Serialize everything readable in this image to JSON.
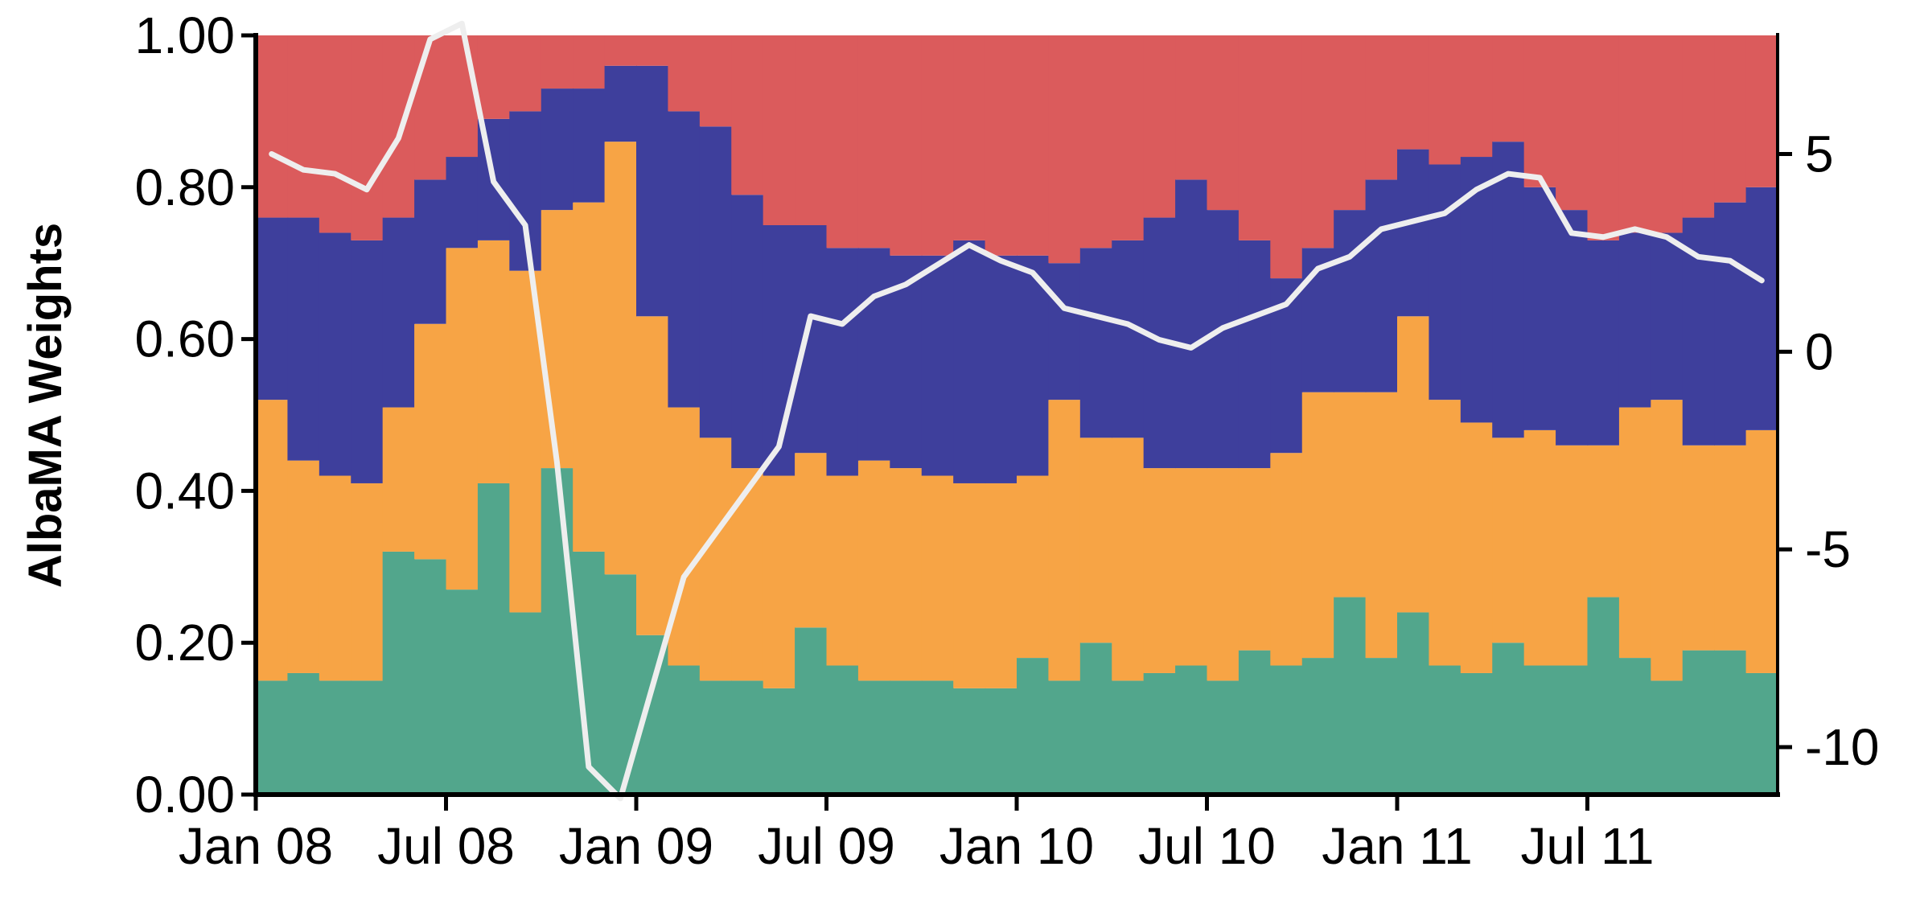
{
  "chart_data": {
    "type": "area",
    "ylabel": "AlbaMA Weights",
    "ylim": [
      0,
      1
    ],
    "y_ticks": [
      "0.00",
      "0.20",
      "0.40",
      "0.60",
      "0.80",
      "1.00"
    ],
    "y2lim": [
      -11.2,
      8
    ],
    "y2_ticks": [
      "-10",
      "-5",
      "0",
      "5"
    ],
    "x_ticks": [
      "Jan 08",
      "Jul 08",
      "Jan 09",
      "Jul 09",
      "Jan 10",
      "Jul 10",
      "Jan 11",
      "Jul 11"
    ],
    "x": [
      "2008-01",
      "2008-02",
      "2008-03",
      "2008-04",
      "2008-05",
      "2008-06",
      "2008-07",
      "2008-08",
      "2008-09",
      "2008-10",
      "2008-11",
      "2008-12",
      "2009-01",
      "2009-02",
      "2009-03",
      "2009-04",
      "2009-05",
      "2009-06",
      "2009-07",
      "2009-08",
      "2009-09",
      "2009-10",
      "2009-11",
      "2009-12",
      "2010-01",
      "2010-02",
      "2010-03",
      "2010-04",
      "2010-05",
      "2010-06",
      "2010-07",
      "2010-08",
      "2010-09",
      "2010-10",
      "2010-11",
      "2010-12",
      "2011-01",
      "2011-02",
      "2011-03",
      "2011-04",
      "2011-05",
      "2011-06",
      "2011-07",
      "2011-08",
      "2011-09",
      "2011-10",
      "2011-11",
      "2011-12"
    ],
    "colors": {
      "green": "#52a68c",
      "orange": "#f7a445",
      "blue": "#3e3f9c",
      "red": "#db5b5c",
      "line": "#eeeeee"
    },
    "series": [
      {
        "values": [
          0.15,
          0.16,
          0.15,
          0.15,
          0.32,
          0.31,
          0.27,
          0.41,
          0.24,
          0.43,
          0.32,
          0.29,
          0.21,
          0.17,
          0.15,
          0.15,
          0.14,
          0.22,
          0.17,
          0.15,
          0.15,
          0.15,
          0.14,
          0.14,
          0.18,
          0.15,
          0.2,
          0.15,
          0.16,
          0.17,
          0.15,
          0.19,
          0.17,
          0.18,
          0.26,
          0.18,
          0.24,
          0.17,
          0.16,
          0.2,
          0.17,
          0.17,
          0.26,
          0.18,
          0.15,
          0.19,
          0.19,
          0.16
        ]
      },
      {
        "values": [
          0.52,
          0.44,
          0.42,
          0.41,
          0.51,
          0.62,
          0.72,
          0.73,
          0.69,
          0.77,
          0.78,
          0.86,
          0.63,
          0.51,
          0.47,
          0.43,
          0.42,
          0.45,
          0.42,
          0.44,
          0.43,
          0.42,
          0.41,
          0.41,
          0.42,
          0.52,
          0.47,
          0.47,
          0.43,
          0.43,
          0.43,
          0.43,
          0.45,
          0.53,
          0.53,
          0.53,
          0.63,
          0.52,
          0.49,
          0.47,
          0.48,
          0.46,
          0.46,
          0.51,
          0.52,
          0.46,
          0.46,
          0.48
        ]
      },
      {
        "values": [
          0.76,
          0.76,
          0.74,
          0.73,
          0.76,
          0.81,
          0.84,
          0.89,
          0.9,
          0.93,
          0.93,
          0.96,
          0.96,
          0.9,
          0.88,
          0.79,
          0.75,
          0.75,
          0.72,
          0.72,
          0.71,
          0.71,
          0.73,
          0.71,
          0.71,
          0.7,
          0.72,
          0.73,
          0.76,
          0.81,
          0.77,
          0.73,
          0.68,
          0.72,
          0.77,
          0.81,
          0.85,
          0.83,
          0.84,
          0.86,
          0.8,
          0.77,
          0.73,
          0.74,
          0.74,
          0.76,
          0.78,
          0.8
        ]
      }
    ],
    "line": {
      "axis": "right",
      "values": [
        5.0,
        4.6,
        4.5,
        4.1,
        5.4,
        7.9,
        8.3,
        4.3,
        3.2,
        -2.8,
        -10.5,
        -11.3,
        -8.5,
        -5.7,
        -4.6,
        -3.5,
        -2.4,
        0.9,
        0.7,
        1.4,
        1.7,
        2.2,
        2.7,
        2.3,
        2.0,
        1.1,
        0.9,
        0.7,
        0.3,
        0.1,
        0.6,
        0.9,
        1.2,
        2.1,
        2.4,
        3.1,
        3.3,
        3.5,
        4.1,
        4.5,
        4.4,
        3.0,
        2.9,
        3.1,
        2.9,
        2.4,
        2.3,
        1.8
      ]
    }
  }
}
